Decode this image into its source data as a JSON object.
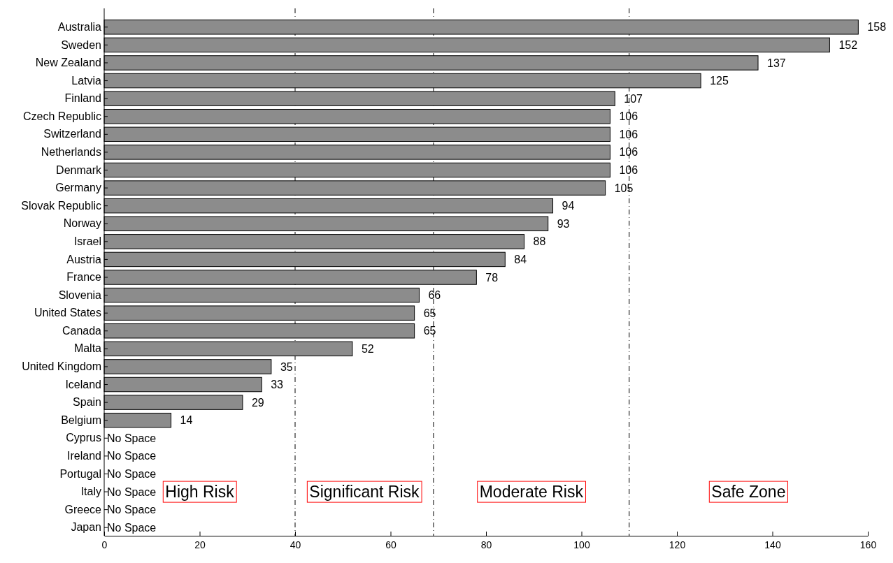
{
  "chart_data": {
    "type": "bar",
    "orientation": "horizontal",
    "categories": [
      "Australia",
      "Sweden",
      "New Zealand",
      "Latvia",
      "Finland",
      "Czech Republic",
      "Switzerland",
      "Netherlands",
      "Denmark",
      "Germany",
      "Slovak Republic",
      "Norway",
      "Israel",
      "Austria",
      "France",
      "Slovenia",
      "United States",
      "Canada",
      "Malta",
      "United Kingdom",
      "Iceland",
      "Spain",
      "Belgium",
      "Cyprus",
      "Ireland",
      "Portugal",
      "Italy",
      "Greece",
      "Japan"
    ],
    "values": [
      158,
      152,
      137,
      125,
      107,
      106,
      106,
      106,
      106,
      105,
      94,
      93,
      88,
      84,
      78,
      66,
      65,
      65,
      52,
      35,
      33,
      29,
      14,
      0,
      0,
      0,
      0,
      0,
      0
    ],
    "value_labels": [
      "158",
      "152",
      "137",
      "125",
      "107",
      "106",
      "106",
      "106",
      "106",
      "105",
      "94",
      "93",
      "88",
      "84",
      "78",
      "66",
      "65",
      "65",
      "52",
      "35",
      "33",
      "29",
      "14",
      "No Space",
      "No Space",
      "No Space",
      "No Space",
      "No Space",
      "No Space"
    ],
    "color": "#8c8c8c",
    "xlim": [
      0,
      160
    ],
    "xticks": [
      0,
      20,
      40,
      60,
      80,
      100,
      120,
      140,
      160
    ],
    "grid": false,
    "ref_lines": [
      {
        "axis": "x",
        "value": 40,
        "color": "#000000",
        "line_style": "dashed"
      },
      {
        "axis": "x",
        "value": 69,
        "color": "#000000",
        "line_style": "dashed"
      },
      {
        "axis": "x",
        "value": 110,
        "color": "#000000",
        "line_style": "dashed"
      }
    ],
    "annotations": [
      "High Risk",
      "Significant Risk",
      "Moderate Risk",
      "Safe Zone"
    ]
  }
}
